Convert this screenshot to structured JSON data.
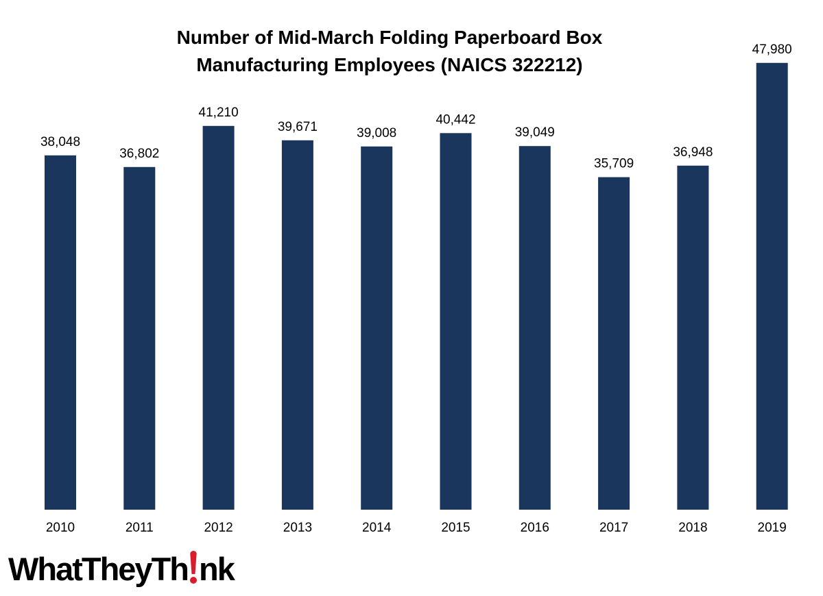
{
  "chart_data": {
    "type": "bar",
    "title_lines": [
      "Number of Mid-March Folding Paperboard Box",
      "Manufacturing Employees (NAICS 322212)"
    ],
    "categories": [
      "2010",
      "2011",
      "2012",
      "2013",
      "2014",
      "2015",
      "2016",
      "2017",
      "2018",
      "2019"
    ],
    "values": [
      38048,
      36802,
      41210,
      39671,
      39008,
      40442,
      39049,
      35709,
      36948,
      47980
    ],
    "value_labels": [
      "38,048",
      "36,802",
      "41,210",
      "39,671",
      "39,008",
      "40,442",
      "39,049",
      "35,709",
      "36,948",
      "47,980"
    ],
    "xlabel": "",
    "ylabel": "",
    "ylim": [
      0,
      54000
    ],
    "grid": false,
    "legend": "none",
    "bar_color": "#1b365d"
  },
  "logo": {
    "left_text": "WhatTheyTh",
    "right_text": "nk",
    "accent_color": "#d81e2c"
  }
}
